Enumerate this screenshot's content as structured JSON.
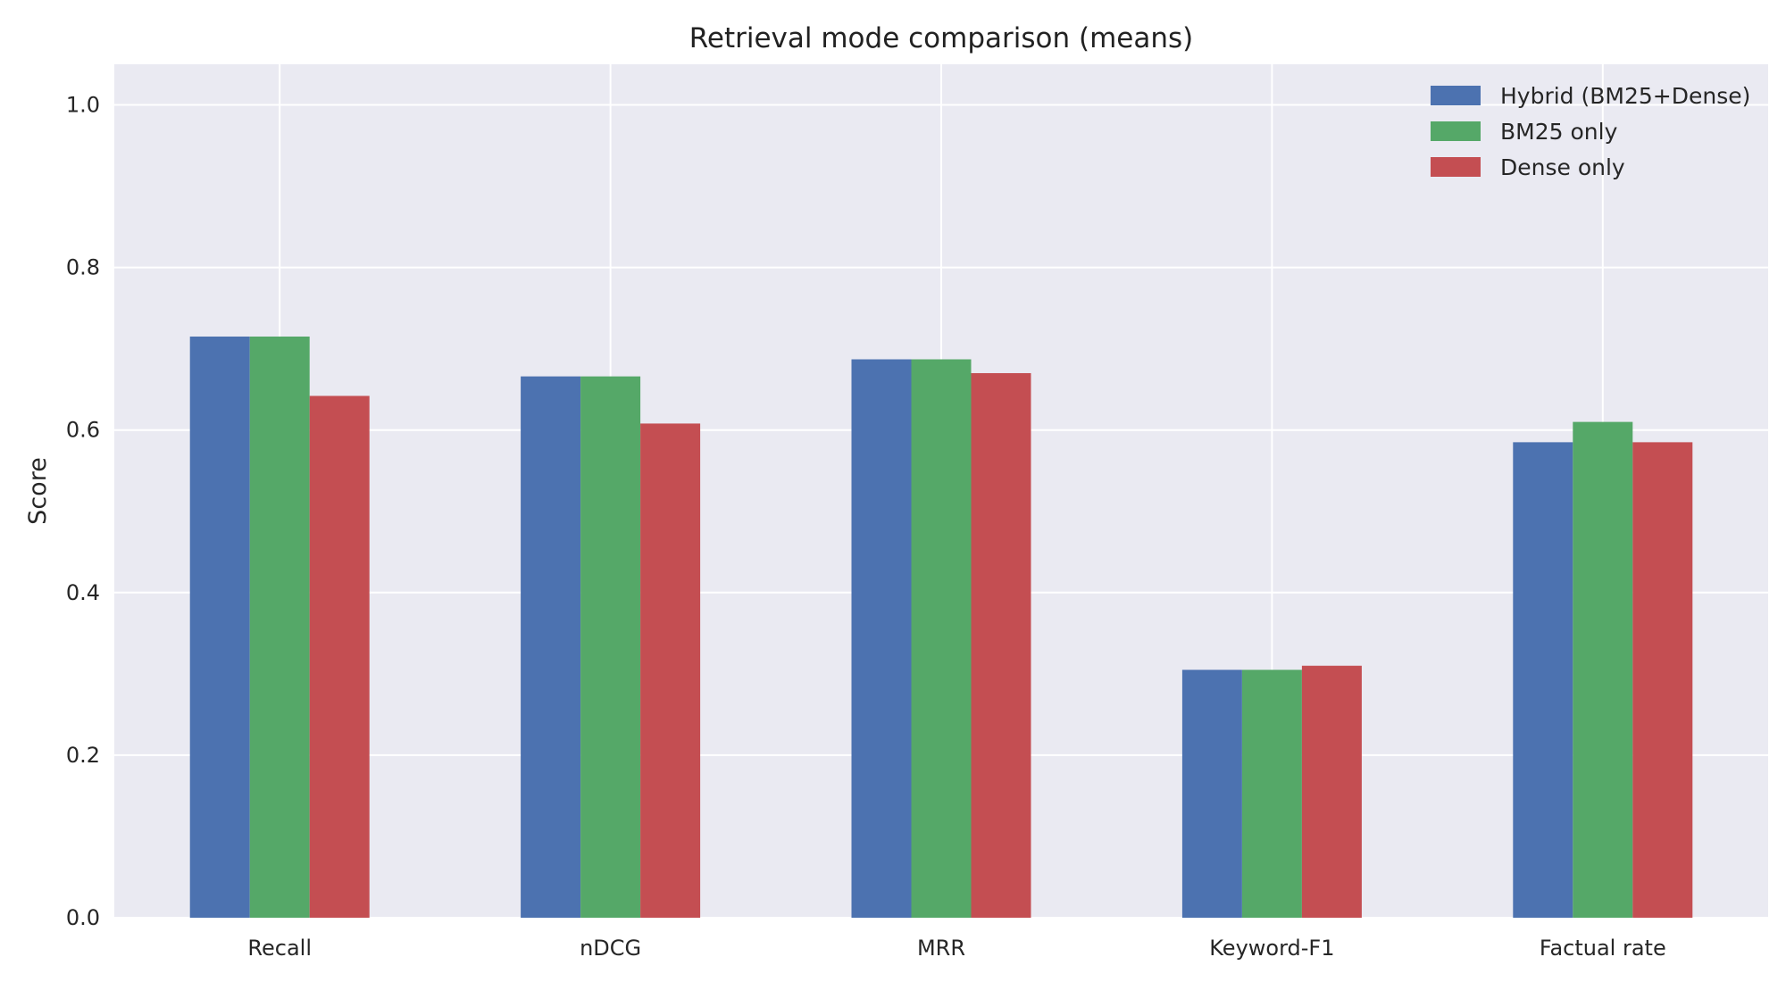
{
  "chart_data": {
    "type": "bar",
    "title": "Retrieval mode comparison (means)",
    "xlabel": "",
    "ylabel": "Score",
    "ylim": [
      0,
      1.05
    ],
    "yticks": [
      0.0,
      0.2,
      0.4,
      0.6,
      0.8,
      1.0
    ],
    "ytick_labels": [
      "0.0",
      "0.2",
      "0.4",
      "0.6",
      "0.8",
      "1.0"
    ],
    "grid": true,
    "legend_position": "top-right",
    "categories": [
      "Recall",
      "nDCG",
      "MRR",
      "Keyword-F1",
      "Factual rate"
    ],
    "series": [
      {
        "name": "Hybrid (BM25+Dense)",
        "color": "#4c72b0",
        "values": [
          0.715,
          0.666,
          0.687,
          0.305,
          0.585
        ]
      },
      {
        "name": "BM25 only",
        "color": "#55a868",
        "values": [
          0.715,
          0.666,
          0.687,
          0.305,
          0.61
        ]
      },
      {
        "name": "Dense only",
        "color": "#c44e52",
        "values": [
          0.642,
          0.608,
          0.67,
          0.31,
          0.585
        ]
      }
    ],
    "colors": {
      "plot_background": "#eaeaf2",
      "grid": "#ffffff"
    }
  }
}
